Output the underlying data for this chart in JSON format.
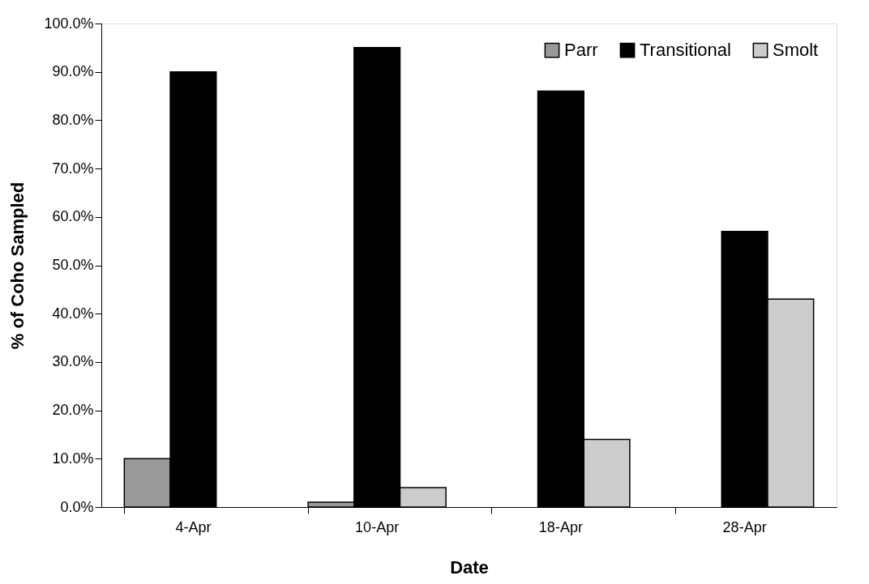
{
  "chart_data": {
    "type": "bar",
    "xlabel": "Date",
    "ylabel": "% of Coho Sampled",
    "categories": [
      "4-Apr",
      "10-Apr",
      "18-Apr",
      "28-Apr"
    ],
    "series": [
      {
        "name": "Parr",
        "color": "#999999",
        "values": [
          10,
          1,
          null,
          null
        ]
      },
      {
        "name": "Transitional",
        "color": "#000000",
        "values": [
          90,
          95,
          86,
          57
        ]
      },
      {
        "name": "Smolt",
        "color": "#cccccc",
        "values": [
          null,
          4,
          14,
          43
        ]
      }
    ],
    "ylim": [
      0,
      100
    ],
    "yticks": [
      {
        "value": 0,
        "label": "0.0%"
      },
      {
        "value": 10,
        "label": "10.0%"
      },
      {
        "value": 20,
        "label": "20.0%"
      },
      {
        "value": 30,
        "label": "30.0%"
      },
      {
        "value": 40,
        "label": "40.0%"
      },
      {
        "value": 50,
        "label": "50.0%"
      },
      {
        "value": 60,
        "label": "60.0%"
      },
      {
        "value": 70,
        "label": "70.0%"
      },
      {
        "value": 80,
        "label": "80.0%"
      },
      {
        "value": 90,
        "label": "90.0%"
      },
      {
        "value": 100,
        "label": "100.0%"
      }
    ],
    "grid": false,
    "legend": "top right"
  }
}
